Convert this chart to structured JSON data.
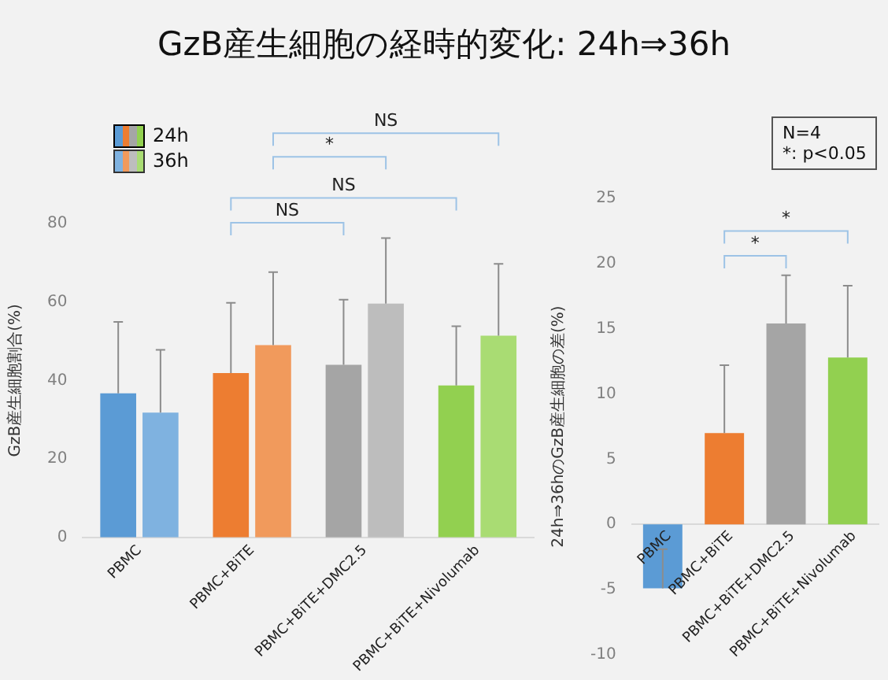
{
  "chart_data": [
    {
      "type": "bar",
      "title": "GzB産生細胞の経時的変化: 24h⇒36h",
      "ylabel": "GzB産生細胞割合(%)",
      "categories": [
        "PBMC",
        "PBMC+BiTE",
        "PBMC+BiTE+DMC2.5",
        "PBMC+BiTE+Nivolumab"
      ],
      "series": [
        {
          "name": "24h",
          "colors": [
            "#5b9bd5",
            "#ed7d31",
            "#a5a5a5",
            "#92d050"
          ],
          "values": [
            36.7,
            41.9,
            44.0,
            38.7
          ],
          "errors": [
            [
              36.7,
              54.9
            ],
            [
              41.9,
              59.8
            ],
            [
              44.0,
              60.6
            ],
            [
              38.7,
              53.8
            ]
          ]
        },
        {
          "name": "36h",
          "colors": [
            "#7fb2e0",
            "#f19a5c",
            "#bdbdbd",
            "#a9dc73"
          ],
          "values": [
            31.8,
            49.0,
            59.6,
            51.4
          ],
          "errors": [
            [
              31.8,
              47.8
            ],
            [
              49.0,
              67.6
            ],
            [
              59.6,
              76.3
            ],
            [
              51.4,
              69.7
            ]
          ]
        }
      ],
      "ylim": [
        0,
        80
      ],
      "yticks": [
        0,
        20,
        40,
        60,
        80
      ],
      "legend": "top left",
      "annotations": [
        "NS",
        "*",
        "NS",
        "NS"
      ]
    },
    {
      "type": "bar",
      "ylabel": "24h⇒36hのGzB産生細胞の差(%)",
      "categories": [
        "PBMC",
        "PBMC+BiTE",
        "PBMC+BiTE+DMC2.5",
        "PBMC+BiTE+Nivolumab"
      ],
      "values": [
        -4.9,
        7.0,
        15.4,
        12.8
      ],
      "colors": [
        "#5b9bd5",
        "#ed7d31",
        "#a5a5a5",
        "#92d050"
      ],
      "errors": [
        [
          -4.9,
          -1.9
        ],
        [
          7.0,
          12.2
        ],
        [
          15.4,
          19.1
        ],
        [
          12.8,
          18.3
        ]
      ],
      "ylim": [
        -10,
        25
      ],
      "yticks": [
        -10,
        -5,
        0,
        5,
        10,
        15,
        20,
        25
      ],
      "annotations": [
        "*",
        "*",
        "N=4",
        "*: p<0.05"
      ]
    }
  ]
}
